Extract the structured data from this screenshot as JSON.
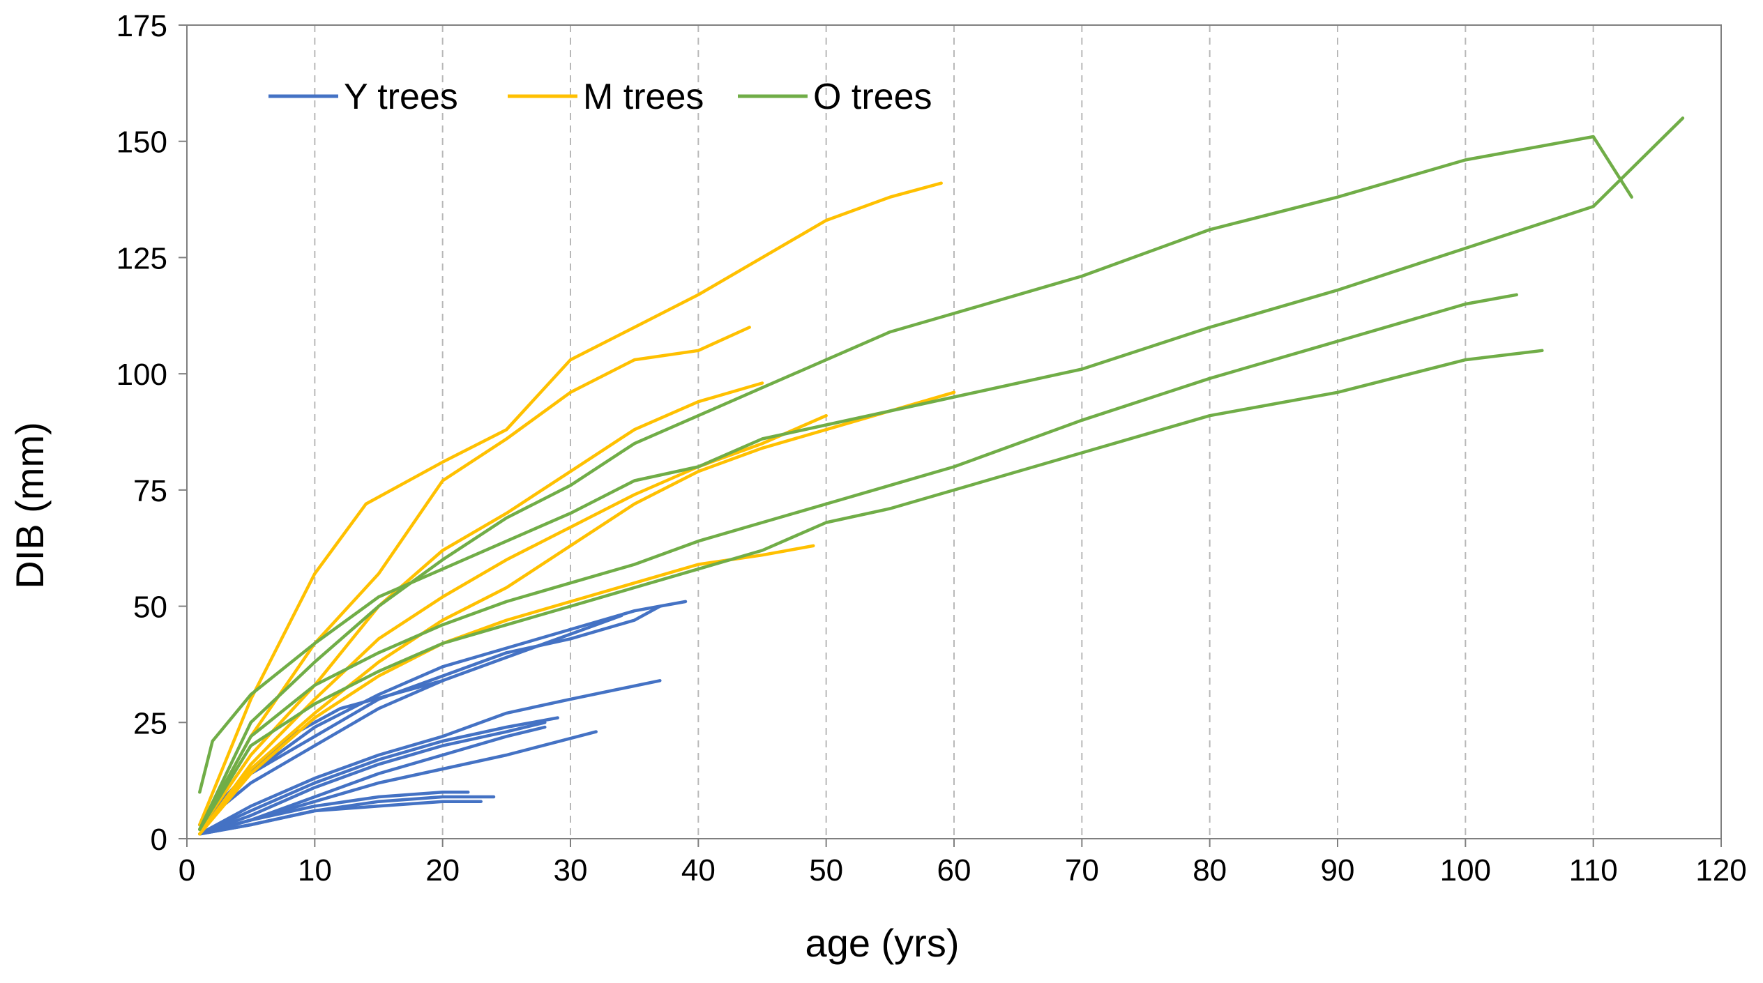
{
  "chart_data": {
    "type": "line",
    "title": "",
    "xlabel": "age (yrs)",
    "ylabel": "DIB (mm)",
    "xlim": [
      0,
      120
    ],
    "ylim": [
      0,
      175
    ],
    "x_ticks": [
      "0",
      "10",
      "20",
      "30",
      "40",
      "50",
      "60",
      "70",
      "80",
      "90",
      "100",
      "110",
      "120"
    ],
    "y_ticks": [
      "0",
      "25",
      "50",
      "75",
      "100",
      "125",
      "150",
      "175"
    ],
    "grid": "vertical dashed",
    "legend_position": "top-left",
    "colors": {
      "Y trees": "#4472c4",
      "M trees": "#ffc000",
      "O trees": "#70ad47"
    },
    "legend": [
      "Y trees",
      "M trees",
      "O trees"
    ],
    "series": [
      {
        "name": "Y trees",
        "x": [
          1,
          5,
          10,
          15,
          20,
          25,
          30,
          35,
          39
        ],
        "y": [
          3,
          14,
          24,
          31,
          37,
          41,
          45,
          49,
          51
        ]
      },
      {
        "name": "Y trees",
        "x": [
          1,
          5,
          10,
          15,
          20,
          25,
          30,
          35,
          37
        ],
        "y": [
          3,
          14,
          22,
          30,
          35,
          40,
          43,
          47,
          50
        ]
      },
      {
        "name": "Y trees",
        "x": [
          1,
          5,
          10,
          15,
          20,
          25,
          30,
          34
        ],
        "y": [
          3,
          12,
          20,
          28,
          34,
          39,
          44,
          48
        ]
      },
      {
        "name": "Y trees",
        "x": [
          1,
          4,
          8,
          12,
          16,
          20
        ],
        "y": [
          3,
          12,
          22,
          28,
          31,
          34
        ]
      },
      {
        "name": "Y trees",
        "x": [
          1,
          5,
          10,
          15,
          20,
          25,
          30,
          37
        ],
        "y": [
          1,
          7,
          13,
          18,
          22,
          27,
          30,
          34
        ]
      },
      {
        "name": "Y trees",
        "x": [
          1,
          5,
          10,
          15,
          20,
          25,
          29
        ],
        "y": [
          1,
          6,
          12,
          17,
          21,
          24,
          26
        ]
      },
      {
        "name": "Y trees",
        "x": [
          1,
          5,
          10,
          15,
          20,
          25,
          28
        ],
        "y": [
          1,
          5,
          11,
          16,
          20,
          23,
          25
        ]
      },
      {
        "name": "Y trees",
        "x": [
          1,
          5,
          10,
          15,
          20,
          25,
          28
        ],
        "y": [
          1,
          4,
          9,
          14,
          18,
          22,
          24
        ]
      },
      {
        "name": "Y trees",
        "x": [
          1,
          5,
          10,
          15,
          20,
          25,
          32
        ],
        "y": [
          1,
          4,
          8,
          12,
          15,
          18,
          23
        ]
      },
      {
        "name": "Y trees",
        "x": [
          1,
          5,
          10,
          15,
          20,
          22
        ],
        "y": [
          1,
          4,
          7,
          9,
          10,
          10
        ]
      },
      {
        "name": "Y trees",
        "x": [
          1,
          5,
          10,
          15,
          20,
          24
        ],
        "y": [
          1,
          3,
          6,
          8,
          9,
          9
        ]
      },
      {
        "name": "Y trees",
        "x": [
          1,
          5,
          10,
          15,
          20,
          23
        ],
        "y": [
          1,
          3,
          6,
          7,
          8,
          8
        ]
      },
      {
        "name": "M trees",
        "x": [
          1,
          5,
          10,
          14,
          20,
          25,
          30,
          35,
          40,
          45,
          50,
          55,
          59
        ],
        "y": [
          3,
          30,
          57,
          72,
          81,
          88,
          103,
          110,
          117,
          125,
          133,
          138,
          141
        ]
      },
      {
        "name": "M trees",
        "x": [
          1,
          5,
          10,
          15,
          20,
          25,
          30,
          35,
          40,
          44
        ],
        "y": [
          2,
          22,
          42,
          57,
          77,
          86,
          96,
          103,
          105,
          110
        ]
      },
      {
        "name": "M trees",
        "x": [
          1,
          5,
          10,
          15,
          20,
          25,
          30,
          35,
          40,
          45
        ],
        "y": [
          2,
          18,
          33,
          50,
          62,
          70,
          79,
          88,
          94,
          98
        ]
      },
      {
        "name": "M trees",
        "x": [
          1,
          5,
          10,
          15,
          20,
          25,
          30,
          35,
          40,
          45,
          50
        ],
        "y": [
          1,
          16,
          30,
          43,
          52,
          60,
          67,
          74,
          80,
          85,
          91
        ]
      },
      {
        "name": "M trees",
        "x": [
          1,
          5,
          10,
          15,
          20,
          25,
          30,
          35,
          40,
          45,
          50,
          55,
          60
        ],
        "y": [
          1,
          15,
          27,
          38,
          47,
          54,
          63,
          72,
          79,
          84,
          88,
          92,
          96
        ]
      },
      {
        "name": "M trees",
        "x": [
          1,
          5,
          10,
          15,
          20,
          25,
          30,
          35,
          40,
          45,
          49
        ],
        "y": [
          1,
          14,
          26,
          35,
          42,
          47,
          51,
          55,
          59,
          61,
          63
        ]
      },
      {
        "name": "O trees",
        "x": [
          1,
          2,
          5,
          10,
          15,
          20,
          25,
          30,
          35,
          40,
          45,
          50,
          55,
          60,
          70,
          80,
          90,
          100,
          110,
          117
        ],
        "y": [
          10,
          21,
          31,
          42,
          52,
          58,
          64,
          70,
          77,
          80,
          86,
          89,
          92,
          95,
          101,
          110,
          118,
          127,
          136,
          155
        ]
      },
      {
        "name": "O trees",
        "x": [
          1,
          5,
          10,
          15,
          20,
          25,
          30,
          35,
          40,
          45,
          50,
          55,
          60,
          70,
          80,
          90,
          100,
          110,
          113
        ],
        "y": [
          2,
          25,
          38,
          50,
          60,
          69,
          76,
          85,
          91,
          97,
          103,
          109,
          113,
          121,
          131,
          138,
          146,
          151,
          138
        ]
      },
      {
        "name": "O trees",
        "x": [
          1,
          5,
          10,
          15,
          20,
          25,
          30,
          35,
          40,
          45,
          50,
          55,
          60,
          70,
          80,
          90,
          100,
          104
        ],
        "y": [
          2,
          22,
          33,
          40,
          46,
          51,
          55,
          59,
          64,
          68,
          72,
          76,
          80,
          90,
          99,
          107,
          115,
          117
        ]
      },
      {
        "name": "O trees",
        "x": [
          1,
          5,
          10,
          15,
          20,
          25,
          30,
          35,
          40,
          45,
          50,
          55,
          60,
          70,
          80,
          90,
          100,
          106
        ],
        "y": [
          2,
          20,
          29,
          36,
          42,
          46,
          50,
          54,
          58,
          62,
          68,
          71,
          75,
          83,
          91,
          96,
          103,
          105
        ]
      }
    ]
  }
}
